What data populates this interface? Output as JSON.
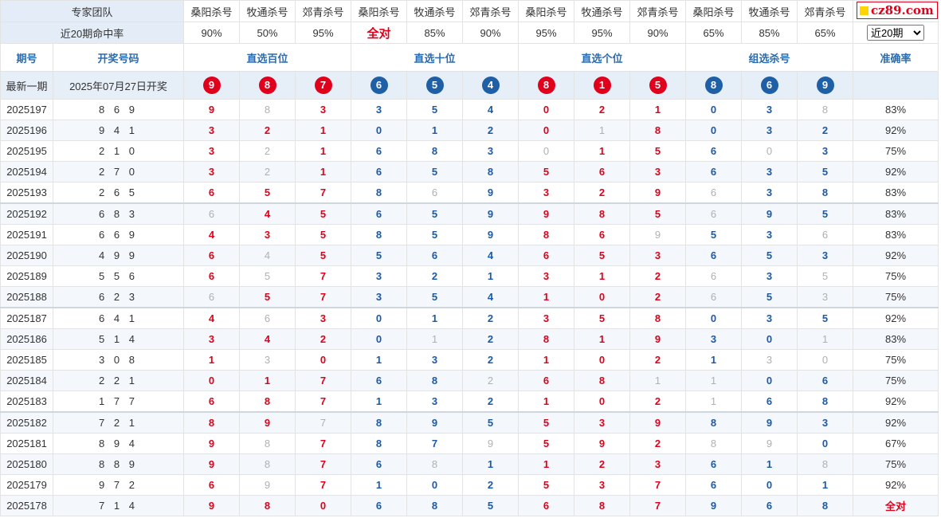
{
  "logo_text": "cz89.com",
  "header": {
    "team_label": "专家团队",
    "experts": [
      "桑阳杀号",
      "牧通杀号",
      "郊青杀号",
      "桑阳杀号",
      "牧通杀号",
      "郊青杀号",
      "桑阳杀号",
      "牧通杀号",
      "郊青杀号",
      "桑阳杀号",
      "牧通杀号",
      "郊青杀号"
    ],
    "rate_label": "近20期命中率",
    "rates": [
      "90%",
      "50%",
      "95%",
      "全对",
      "85%",
      "90%",
      "95%",
      "95%",
      "90%",
      "65%",
      "85%",
      "65%"
    ],
    "period_select": "近20期"
  },
  "columns": {
    "period": "期号",
    "draw": "开奖号码",
    "groups": [
      "直选百位",
      "直选十位",
      "直选个位",
      "组选杀号"
    ],
    "accuracy": "准确率"
  },
  "latest": {
    "label": "最新一期",
    "draw_date": "2025年07月27日开奖",
    "balls": [
      "9",
      "8",
      "7",
      "6",
      "5",
      "4",
      "8",
      "1",
      "5",
      "8",
      "6",
      "9"
    ]
  },
  "rows": [
    {
      "period": "2025197",
      "draw": "8 6 9",
      "picks": [
        "9",
        "8",
        "3",
        "3",
        "5",
        "4",
        "0",
        "2",
        "1",
        "0",
        "3",
        "8"
      ],
      "hit": [
        0,
        1,
        0,
        0,
        0,
        0,
        0,
        0,
        0,
        0,
        0,
        1
      ],
      "accuracy": "83%"
    },
    {
      "period": "2025196",
      "draw": "9 4 1",
      "picks": [
        "3",
        "2",
        "1",
        "0",
        "1",
        "2",
        "0",
        "1",
        "8",
        "0",
        "3",
        "2"
      ],
      "hit": [
        0,
        0,
        0,
        0,
        0,
        0,
        0,
        1,
        0,
        0,
        0,
        0
      ],
      "accuracy": "92%"
    },
    {
      "period": "2025195",
      "draw": "2 1 0",
      "picks": [
        "3",
        "2",
        "1",
        "6",
        "8",
        "3",
        "0",
        "1",
        "5",
        "6",
        "0",
        "3"
      ],
      "hit": [
        0,
        1,
        0,
        0,
        0,
        0,
        1,
        0,
        0,
        0,
        1,
        0
      ],
      "accuracy": "75%"
    },
    {
      "period": "2025194",
      "draw": "2 7 0",
      "picks": [
        "3",
        "2",
        "1",
        "6",
        "5",
        "8",
        "5",
        "6",
        "3",
        "6",
        "3",
        "5"
      ],
      "hit": [
        0,
        1,
        0,
        0,
        0,
        0,
        0,
        0,
        0,
        0,
        0,
        0
      ],
      "accuracy": "92%"
    },
    {
      "period": "2025193",
      "draw": "2 6 5",
      "picks": [
        "6",
        "5",
        "7",
        "8",
        "6",
        "9",
        "3",
        "2",
        "9",
        "6",
        "3",
        "8"
      ],
      "hit": [
        0,
        0,
        0,
        0,
        1,
        0,
        0,
        0,
        0,
        1,
        0,
        0
      ],
      "accuracy": "83%"
    },
    {
      "period": "2025192",
      "draw": "6 8 3",
      "picks": [
        "6",
        "4",
        "5",
        "6",
        "5",
        "9",
        "9",
        "8",
        "5",
        "6",
        "9",
        "5"
      ],
      "hit": [
        1,
        0,
        0,
        0,
        0,
        0,
        0,
        0,
        0,
        1,
        0,
        0
      ],
      "accuracy": "83%"
    },
    {
      "period": "2025191",
      "draw": "6 6 9",
      "picks": [
        "4",
        "3",
        "5",
        "8",
        "5",
        "9",
        "8",
        "6",
        "9",
        "5",
        "3",
        "6"
      ],
      "hit": [
        0,
        0,
        0,
        0,
        0,
        0,
        0,
        0,
        1,
        0,
        0,
        1
      ],
      "accuracy": "83%"
    },
    {
      "period": "2025190",
      "draw": "4 9 9",
      "picks": [
        "6",
        "4",
        "5",
        "5",
        "6",
        "4",
        "6",
        "5",
        "3",
        "6",
        "5",
        "3"
      ],
      "hit": [
        0,
        1,
        0,
        0,
        0,
        0,
        0,
        0,
        0,
        0,
        0,
        0
      ],
      "accuracy": "92%"
    },
    {
      "period": "2025189",
      "draw": "5 5 6",
      "picks": [
        "6",
        "5",
        "7",
        "3",
        "2",
        "1",
        "3",
        "1",
        "2",
        "6",
        "3",
        "5"
      ],
      "hit": [
        0,
        1,
        0,
        0,
        0,
        0,
        0,
        0,
        0,
        1,
        0,
        1
      ],
      "accuracy": "75%"
    },
    {
      "period": "2025188",
      "draw": "6 2 3",
      "picks": [
        "6",
        "5",
        "7",
        "3",
        "5",
        "4",
        "1",
        "0",
        "2",
        "6",
        "5",
        "3"
      ],
      "hit": [
        1,
        0,
        0,
        0,
        0,
        0,
        0,
        0,
        0,
        1,
        0,
        1
      ],
      "accuracy": "75%"
    },
    {
      "period": "2025187",
      "draw": "6 4 1",
      "picks": [
        "4",
        "6",
        "3",
        "0",
        "1",
        "2",
        "3",
        "5",
        "8",
        "0",
        "3",
        "5"
      ],
      "hit": [
        0,
        1,
        0,
        0,
        0,
        0,
        0,
        0,
        0,
        0,
        0,
        0
      ],
      "accuracy": "92%"
    },
    {
      "period": "2025186",
      "draw": "5 1 4",
      "picks": [
        "3",
        "4",
        "2",
        "0",
        "1",
        "2",
        "8",
        "1",
        "9",
        "3",
        "0",
        "1"
      ],
      "hit": [
        0,
        0,
        0,
        0,
        1,
        0,
        0,
        0,
        0,
        0,
        0,
        1
      ],
      "accuracy": "83%"
    },
    {
      "period": "2025185",
      "draw": "3 0 8",
      "picks": [
        "1",
        "3",
        "0",
        "1",
        "3",
        "2",
        "1",
        "0",
        "2",
        "1",
        "3",
        "0"
      ],
      "hit": [
        0,
        1,
        0,
        0,
        0,
        0,
        0,
        0,
        0,
        0,
        1,
        1
      ],
      "accuracy": "75%"
    },
    {
      "period": "2025184",
      "draw": "2 2 1",
      "picks": [
        "0",
        "1",
        "7",
        "6",
        "8",
        "2",
        "6",
        "8",
        "1",
        "1",
        "0",
        "6"
      ],
      "hit": [
        0,
        0,
        0,
        0,
        0,
        1,
        0,
        0,
        1,
        1,
        0,
        0
      ],
      "accuracy": "75%"
    },
    {
      "period": "2025183",
      "draw": "1 7 7",
      "picks": [
        "6",
        "8",
        "7",
        "1",
        "3",
        "2",
        "1",
        "0",
        "2",
        "1",
        "6",
        "8"
      ],
      "hit": [
        0,
        0,
        0,
        0,
        0,
        0,
        0,
        0,
        0,
        1,
        0,
        0
      ],
      "accuracy": "92%"
    },
    {
      "period": "2025182",
      "draw": "7 2 1",
      "picks": [
        "8",
        "9",
        "7",
        "8",
        "9",
        "5",
        "5",
        "3",
        "9",
        "8",
        "9",
        "3"
      ],
      "hit": [
        0,
        0,
        1,
        0,
        0,
        0,
        0,
        0,
        0,
        0,
        0,
        0
      ],
      "accuracy": "92%"
    },
    {
      "period": "2025181",
      "draw": "8 9 4",
      "picks": [
        "9",
        "8",
        "7",
        "8",
        "7",
        "9",
        "5",
        "9",
        "2",
        "8",
        "9",
        "0"
      ],
      "hit": [
        0,
        1,
        0,
        0,
        0,
        1,
        0,
        0,
        0,
        1,
        1,
        0
      ],
      "accuracy": "67%"
    },
    {
      "period": "2025180",
      "draw": "8 8 9",
      "picks": [
        "9",
        "8",
        "7",
        "6",
        "8",
        "1",
        "1",
        "2",
        "3",
        "6",
        "1",
        "8"
      ],
      "hit": [
        0,
        1,
        0,
        0,
        1,
        0,
        0,
        0,
        0,
        0,
        0,
        1
      ],
      "accuracy": "75%"
    },
    {
      "period": "2025179",
      "draw": "9 7 2",
      "picks": [
        "6",
        "9",
        "7",
        "1",
        "0",
        "2",
        "5",
        "3",
        "7",
        "6",
        "0",
        "1"
      ],
      "hit": [
        0,
        1,
        0,
        0,
        0,
        0,
        0,
        0,
        0,
        0,
        0,
        0
      ],
      "accuracy": "92%"
    },
    {
      "period": "2025178",
      "draw": "7 1 4",
      "picks": [
        "9",
        "8",
        "0",
        "6",
        "8",
        "5",
        "6",
        "8",
        "7",
        "9",
        "6",
        "8"
      ],
      "hit": [
        0,
        0,
        0,
        0,
        0,
        0,
        0,
        0,
        0,
        0,
        0,
        0
      ],
      "accuracy": "全对"
    }
  ]
}
